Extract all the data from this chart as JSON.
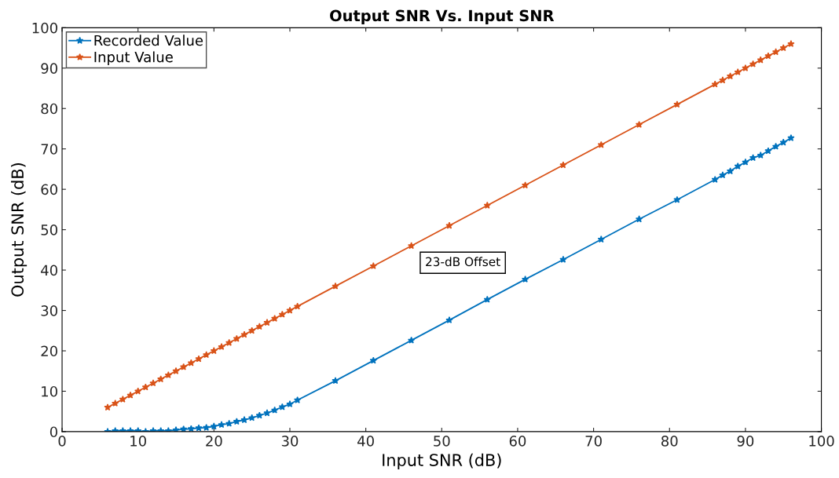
{
  "chart_data": {
    "type": "line",
    "title": "Output SNR Vs. Input SNR",
    "xlabel": "Input SNR (dB)",
    "ylabel": "Output SNR (dB)",
    "x": [
      6,
      7,
      8,
      9,
      10,
      11,
      12,
      13,
      14,
      15,
      16,
      17,
      18,
      19,
      20,
      21,
      22,
      23,
      24,
      25,
      26,
      27,
      28,
      29,
      30,
      31,
      36,
      41,
      46,
      51,
      56,
      61,
      66,
      71,
      76,
      81,
      86,
      87,
      88,
      89,
      90,
      91,
      92,
      93,
      94,
      95,
      96
    ],
    "series": [
      {
        "name": "Recorded Value",
        "color": "#0072bd",
        "values": [
          0,
          0.2,
          0.2,
          0.2,
          0.2,
          0,
          0.2,
          0.2,
          0.2,
          0.4,
          0.6,
          0.7,
          0.9,
          1.0,
          1.3,
          1.7,
          2.0,
          2.5,
          2.9,
          3.4,
          4.0,
          4.6,
          5.3,
          6.1,
          6.8,
          7.8,
          12.6,
          17.6,
          22.6,
          27.6,
          32.7,
          37.7,
          42.6,
          47.6,
          52.6,
          57.4,
          62.4,
          63.5,
          64.5,
          65.7,
          66.7,
          67.8,
          68.4,
          69.5,
          70.6,
          71.6,
          72.7
        ]
      },
      {
        "name": "Input Value",
        "color": "#d95319",
        "values": [
          6,
          7,
          8,
          9,
          10,
          11,
          12,
          13,
          14,
          15,
          16,
          17,
          18,
          19,
          20,
          21,
          22,
          23,
          24,
          25,
          26,
          27,
          28,
          29,
          30,
          31,
          36,
          41,
          46,
          51,
          56,
          61,
          66,
          71,
          76,
          81,
          86,
          87,
          88,
          89,
          90,
          91,
          92,
          93,
          94,
          95,
          96
        ]
      }
    ],
    "xlim": [
      0,
      100
    ],
    "xticks": [
      0,
      10,
      20,
      30,
      40,
      50,
      60,
      70,
      80,
      90,
      100
    ],
    "ylim": [
      0,
      100
    ],
    "yticks": [
      0,
      10,
      20,
      30,
      40,
      50,
      60,
      70,
      80,
      90,
      100
    ],
    "annotations": [
      "23-dB Offset"
    ],
    "grid": false,
    "legend": "top left",
    "marker": "star",
    "line_style": "solid"
  }
}
